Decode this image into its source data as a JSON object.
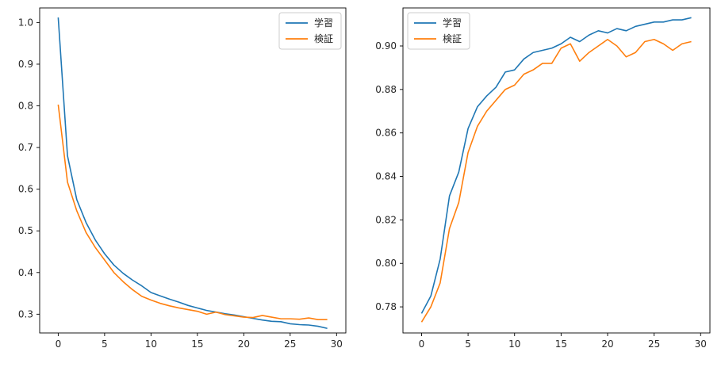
{
  "colors": {
    "train": "#1f77b4",
    "val": "#ff7f0e"
  },
  "chart_data": [
    {
      "type": "line",
      "title": "",
      "xlabel": "",
      "ylabel": "",
      "xlim": [
        -2,
        31
      ],
      "ylim": [
        0.255,
        1.035
      ],
      "grid": false,
      "legend_position": "top-right",
      "x_ticks": [
        0,
        5,
        10,
        15,
        20,
        25,
        30
      ],
      "x_tick_labels": [
        "0",
        "5",
        "10",
        "15",
        "20",
        "25",
        "30"
      ],
      "y_ticks": [
        0.3,
        0.4,
        0.5,
        0.6,
        0.7,
        0.8,
        0.9,
        1.0
      ],
      "y_tick_labels": [
        "0.3",
        "0.4",
        "0.5",
        "0.6",
        "0.7",
        "0.8",
        "0.9",
        "1.0"
      ],
      "x": [
        0,
        1,
        2,
        3,
        4,
        5,
        6,
        7,
        8,
        9,
        10,
        11,
        12,
        13,
        14,
        15,
        16,
        17,
        18,
        19,
        20,
        21,
        22,
        23,
        24,
        25,
        26,
        27,
        28,
        29
      ],
      "series": [
        {
          "name": "学習",
          "color": "#1f77b4",
          "values": [
            1.012,
            0.68,
            0.575,
            0.52,
            0.478,
            0.445,
            0.418,
            0.398,
            0.382,
            0.368,
            0.352,
            0.344,
            0.336,
            0.329,
            0.321,
            0.315,
            0.309,
            0.305,
            0.301,
            0.298,
            0.294,
            0.29,
            0.286,
            0.283,
            0.282,
            0.277,
            0.275,
            0.274,
            0.271,
            0.266
          ]
        },
        {
          "name": "検証",
          "color": "#ff7f0e",
          "values": [
            0.803,
            0.617,
            0.548,
            0.496,
            0.46,
            0.43,
            0.4,
            0.378,
            0.359,
            0.343,
            0.334,
            0.326,
            0.32,
            0.315,
            0.311,
            0.307,
            0.3,
            0.305,
            0.299,
            0.296,
            0.293,
            0.292,
            0.297,
            0.293,
            0.289,
            0.289,
            0.288,
            0.291,
            0.287,
            0.287
          ]
        }
      ]
    },
    {
      "type": "line",
      "title": "",
      "xlabel": "",
      "ylabel": "",
      "xlim": [
        -2,
        31
      ],
      "ylim": [
        0.768,
        0.9175
      ],
      "grid": false,
      "legend_position": "top-left",
      "x_ticks": [
        0,
        5,
        10,
        15,
        20,
        25,
        30
      ],
      "x_tick_labels": [
        "0",
        "5",
        "10",
        "15",
        "20",
        "25",
        "30"
      ],
      "y_ticks": [
        0.78,
        0.8,
        0.82,
        0.84,
        0.86,
        0.88,
        0.9
      ],
      "y_tick_labels": [
        "0.78",
        "0.80",
        "0.82",
        "0.84",
        "0.86",
        "0.88",
        "0.90"
      ],
      "x": [
        0,
        1,
        2,
        3,
        4,
        5,
        6,
        7,
        8,
        9,
        10,
        11,
        12,
        13,
        14,
        15,
        16,
        17,
        18,
        19,
        20,
        21,
        22,
        23,
        24,
        25,
        26,
        27,
        28,
        29
      ],
      "series": [
        {
          "name": "学習",
          "color": "#1f77b4",
          "values": [
            0.777,
            0.785,
            0.802,
            0.831,
            0.842,
            0.862,
            0.872,
            0.877,
            0.881,
            0.888,
            0.889,
            0.894,
            0.897,
            0.898,
            0.899,
            0.901,
            0.904,
            0.902,
            0.905,
            0.907,
            0.906,
            0.908,
            0.907,
            0.909,
            0.91,
            0.911,
            0.911,
            0.912,
            0.912,
            0.913
          ]
        },
        {
          "name": "検証",
          "color": "#ff7f0e",
          "values": [
            0.773,
            0.78,
            0.791,
            0.816,
            0.828,
            0.851,
            0.863,
            0.87,
            0.875,
            0.88,
            0.882,
            0.887,
            0.889,
            0.892,
            0.892,
            0.899,
            0.901,
            0.893,
            0.897,
            0.9,
            0.903,
            0.9,
            0.895,
            0.897,
            0.902,
            0.903,
            0.901,
            0.898,
            0.901,
            0.902
          ]
        }
      ]
    }
  ]
}
